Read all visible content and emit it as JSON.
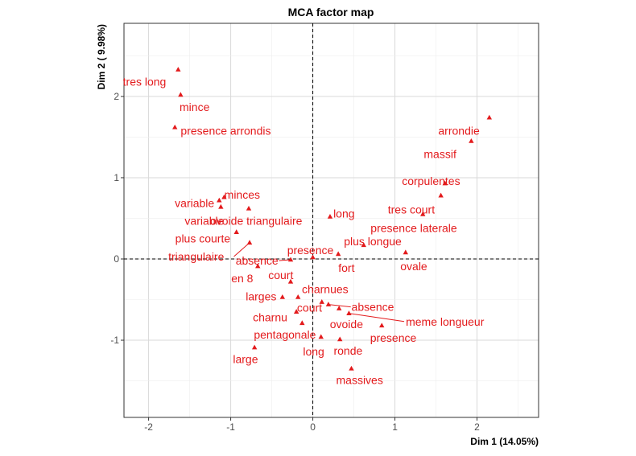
{
  "chart_data": {
    "type": "scatter",
    "title": "MCA factor map",
    "xlabel": "Dim 1 (14.05%)",
    "ylabel": "Dim 2 ( 9.98%)",
    "xlim": [
      -2.3,
      2.75
    ],
    "ylim": [
      -1.95,
      2.9
    ],
    "xticks": [
      -2,
      -1,
      0,
      1,
      2
    ],
    "yticks": [
      -1,
      0,
      1,
      2
    ],
    "x_tick_labels": [
      "-2",
      "-1",
      "0",
      "1",
      "2"
    ],
    "y_tick_labels": [
      "-1",
      "0",
      "1",
      "2"
    ],
    "grid": true,
    "reference_lines": {
      "x": 0,
      "y": 0,
      "style": "dashed"
    },
    "color": "#e31a1c",
    "points": [
      {
        "label": "tres long",
        "x": -1.64,
        "y": 2.33,
        "lx": -2.05,
        "ly": 2.18
      },
      {
        "label": "mince",
        "x": -1.61,
        "y": 2.02,
        "lx": -1.44,
        "ly": 1.87
      },
      {
        "label": "presence arrondis",
        "x": -1.68,
        "y": 1.62,
        "lx": -1.06,
        "ly": 1.58
      },
      {
        "label": "arrondie",
        "x": 2.15,
        "y": 1.74,
        "lx": 1.78,
        "ly": 1.58
      },
      {
        "label": "massif",
        "x": 1.93,
        "y": 1.45,
        "lx": 1.55,
        "ly": 1.29
      },
      {
        "label": "corpulentes",
        "x": 1.61,
        "y": 0.93,
        "lx": 1.44,
        "ly": 0.96
      },
      {
        "label": "tres court",
        "x": 1.56,
        "y": 0.78,
        "lx": 1.2,
        "ly": 0.61
      },
      {
        "label": "presence laterale",
        "x": 1.34,
        "y": 0.55,
        "lx": 1.23,
        "ly": 0.38
      },
      {
        "label": "plus longue",
        "x": 0.62,
        "y": 0.17,
        "lx": 0.73,
        "ly": 0.22
      },
      {
        "label": "ovale",
        "x": 1.13,
        "y": 0.08,
        "lx": 1.23,
        "ly": -0.09
      },
      {
        "label": "fort",
        "x": 0.31,
        "y": 0.06,
        "lx": 0.41,
        "ly": -0.11
      },
      {
        "label": "long",
        "x": 0.21,
        "y": 0.52,
        "lx": 0.38,
        "ly": 0.56
      },
      {
        "label": "minces",
        "x": -1.08,
        "y": 0.76,
        "lx": -0.86,
        "ly": 0.79
      },
      {
        "label": "variable",
        "x": -1.14,
        "y": 0.72,
        "lx": -1.44,
        "ly": 0.69
      },
      {
        "label": "variable",
        "x": -1.12,
        "y": 0.64,
        "lx": -1.32,
        "ly": 0.47
      },
      {
        "label": "ovoide triangulaire",
        "x": -0.78,
        "y": 0.62,
        "lx": -0.69,
        "ly": 0.47
      },
      {
        "label": "plus courte",
        "x": -0.93,
        "y": 0.33,
        "lx": -1.34,
        "ly": 0.25
      },
      {
        "label": "triangulaire",
        "x": -0.77,
        "y": 0.2,
        "lx": -1.42,
        "ly": 0.03,
        "leader": true
      },
      {
        "label": "absence",
        "x": -0.27,
        "y": -0.01,
        "lx": -0.68,
        "ly": -0.02,
        "leader": true
      },
      {
        "label": "presence",
        "x": 0.0,
        "y": 0.02,
        "lx": -0.03,
        "ly": 0.11
      },
      {
        "label": "en 8",
        "x": -0.67,
        "y": -0.09,
        "lx": -0.86,
        "ly": -0.24
      },
      {
        "label": "court",
        "x": -0.27,
        "y": -0.28,
        "lx": -0.39,
        "ly": -0.2
      },
      {
        "label": "charnues",
        "x": -0.18,
        "y": -0.47,
        "lx": 0.15,
        "ly": -0.37
      },
      {
        "label": "larges",
        "x": -0.37,
        "y": -0.47,
        "lx": -0.63,
        "ly": -0.46
      },
      {
        "label": "court",
        "x": 0.11,
        "y": -0.53,
        "lx": -0.04,
        "ly": -0.6
      },
      {
        "label": "absence",
        "x": 0.19,
        "y": -0.56,
        "lx": 0.73,
        "ly": -0.59,
        "leader": true
      },
      {
        "label": "meme longueur",
        "x": 0.44,
        "y": -0.67,
        "lx": 1.61,
        "ly": -0.77,
        "leader": true
      },
      {
        "label": "charnu",
        "x": -0.2,
        "y": -0.65,
        "lx": -0.52,
        "ly": -0.72
      },
      {
        "label": "ovoide",
        "x": 0.32,
        "y": -0.61,
        "lx": 0.41,
        "ly": -0.8
      },
      {
        "label": "pentagonale",
        "x": -0.13,
        "y": -0.79,
        "lx": -0.34,
        "ly": -0.93
      },
      {
        "label": "presence",
        "x": 0.84,
        "y": -0.82,
        "lx": 0.98,
        "ly": -0.97
      },
      {
        "label": "long",
        "x": 0.1,
        "y": -0.96,
        "lx": 0.01,
        "ly": -1.14
      },
      {
        "label": "ronde",
        "x": 0.33,
        "y": -0.99,
        "lx": 0.43,
        "ly": -1.13
      },
      {
        "label": "large",
        "x": -0.71,
        "y": -1.09,
        "lx": -0.82,
        "ly": -1.23
      },
      {
        "label": "massives",
        "x": 0.47,
        "y": -1.35,
        "lx": 0.57,
        "ly": -1.49
      }
    ]
  }
}
